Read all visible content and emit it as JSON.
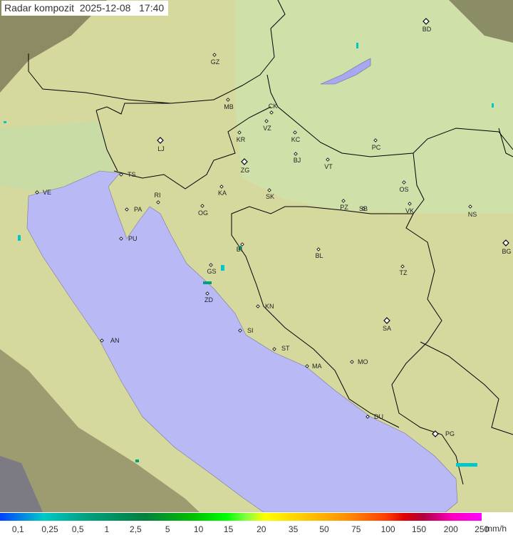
{
  "title": {
    "product": "Radar kompozit",
    "date": "2025-12-08",
    "time": "17:40"
  },
  "colors": {
    "sea": "#b9b9f5",
    "land": "#d9dca0",
    "outside_radar": "#6e6a4a"
  },
  "cities": [
    {
      "code": "GZ",
      "capital": false
    },
    {
      "code": "BD",
      "capital": true
    },
    {
      "code": "MB",
      "capital": false
    },
    {
      "code": "CK",
      "capital": false
    },
    {
      "code": "VZ",
      "capital": false
    },
    {
      "code": "KR",
      "capital": false
    },
    {
      "code": "KC",
      "capital": false
    },
    {
      "code": "PC",
      "capital": false
    },
    {
      "code": "LJ",
      "capital": true
    },
    {
      "code": "ZG",
      "capital": true
    },
    {
      "code": "BJ",
      "capital": false
    },
    {
      "code": "VT",
      "capital": false
    },
    {
      "code": "TS",
      "capital": false
    },
    {
      "code": "VE",
      "capital": false
    },
    {
      "code": "RI",
      "capital": false
    },
    {
      "code": "KA",
      "capital": false
    },
    {
      "code": "SK",
      "capital": false
    },
    {
      "code": "OS",
      "capital": false
    },
    {
      "code": "PA",
      "capital": false
    },
    {
      "code": "OG",
      "capital": false
    },
    {
      "code": "PZ",
      "capital": false
    },
    {
      "code": "SB",
      "capital": false
    },
    {
      "code": "VK",
      "capital": false
    },
    {
      "code": "NS",
      "capital": false
    },
    {
      "code": "PU",
      "capital": false
    },
    {
      "code": "BI",
      "capital": false
    },
    {
      "code": "BL",
      "capital": false
    },
    {
      "code": "BG",
      "capital": true
    },
    {
      "code": "GS",
      "capital": false
    },
    {
      "code": "TZ",
      "capital": false
    },
    {
      "code": "ZD",
      "capital": false
    },
    {
      "code": "KN",
      "capital": false
    },
    {
      "code": "SA",
      "capital": true
    },
    {
      "code": "SI",
      "capital": false
    },
    {
      "code": "AN",
      "capital": false
    },
    {
      "code": "ST",
      "capital": false
    },
    {
      "code": "MO",
      "capital": false
    },
    {
      "code": "MA",
      "capital": false
    },
    {
      "code": "DU",
      "capital": false
    },
    {
      "code": "PG",
      "capital": true
    }
  ],
  "legend": {
    "ticks": [
      "0,1",
      "0,25",
      "0,5",
      "1",
      "2,5",
      "5",
      "10",
      "15",
      "20",
      "35",
      "50",
      "75",
      "100",
      "150",
      "200",
      "250"
    ],
    "unit": "mm/h"
  }
}
